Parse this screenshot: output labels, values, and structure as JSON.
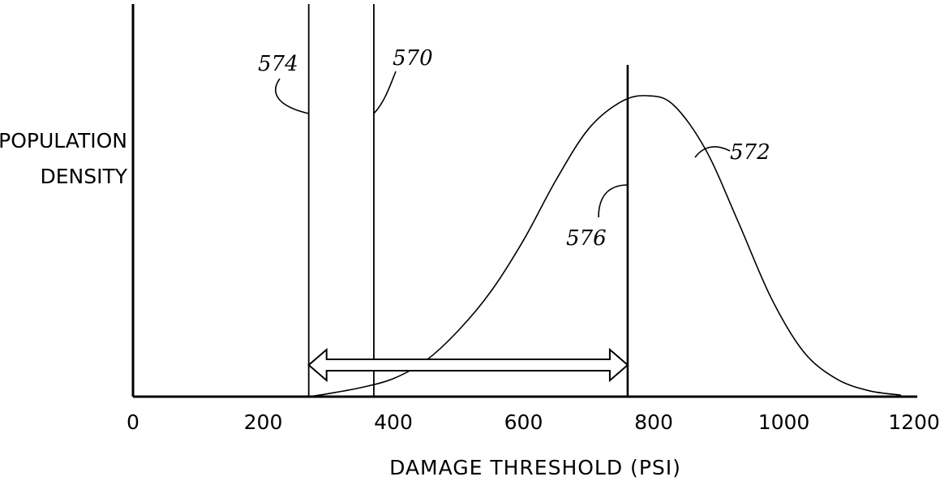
{
  "chart_data": {
    "type": "line",
    "title": "",
    "xlabel": "DAMAGE THRESHOLD (PSI)",
    "ylabel_lines": [
      "POPULATION",
      "DENSITY"
    ],
    "xlim": [
      0,
      1200
    ],
    "xticks": [
      0,
      200,
      400,
      600,
      800,
      1000,
      1200
    ],
    "xtick_labels": [
      "0",
      "200",
      "400",
      "600",
      "800",
      "1000",
      "1200"
    ],
    "grid": false,
    "series": [
      {
        "ref": "572",
        "curve": "population density distribution",
        "peak_x": 790,
        "x": [
          270,
          300,
          350,
          400,
          450,
          500,
          550,
          600,
          650,
          700,
          750,
          790,
          830,
          880,
          930,
          980,
          1030,
          1080,
          1130,
          1180
        ],
        "y": [
          0.0,
          0.01,
          0.03,
          0.06,
          0.12,
          0.22,
          0.35,
          0.52,
          0.72,
          0.89,
          0.98,
          1.0,
          0.97,
          0.82,
          0.58,
          0.33,
          0.15,
          0.06,
          0.02,
          0.005
        ]
      }
    ],
    "vertical_lines": [
      {
        "ref": "574",
        "x": 270
      },
      {
        "ref": "570",
        "x": 370
      },
      {
        "ref": "576",
        "x": 760
      }
    ],
    "range_arrow": {
      "from": 270,
      "to": 760
    }
  }
}
